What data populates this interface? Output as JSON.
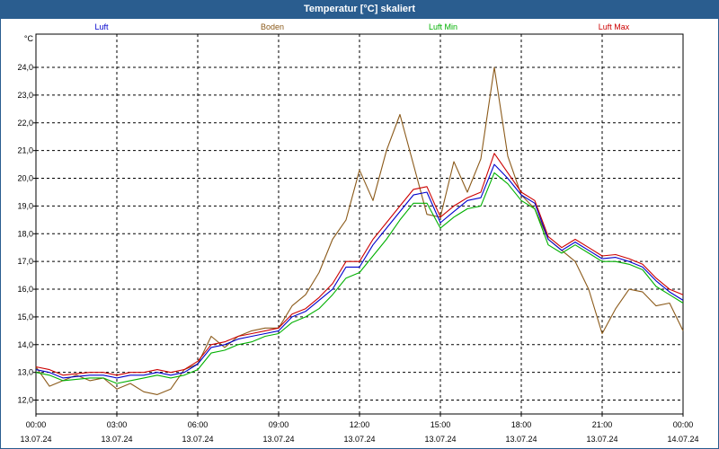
{
  "window": {
    "title": "Temperatur [°C] skaliert"
  },
  "chart_data": {
    "type": "line",
    "title": "Temperatur [°C] skaliert",
    "ylabel": "°C",
    "xlabel": "",
    "ylim": [
      11.5,
      25.2
    ],
    "xlim": [
      0,
      24
    ],
    "grid": true,
    "y_ticks": [
      "12,0",
      "13,0",
      "14,0",
      "15,0",
      "16,0",
      "17,0",
      "18,0",
      "19,0",
      "20,0",
      "21,0",
      "22,0",
      "23,0",
      "24,0"
    ],
    "x_ticks": [
      {
        "time": "00:00",
        "date": "13.07.24"
      },
      {
        "time": "03:00",
        "date": "13.07.24"
      },
      {
        "time": "06:00",
        "date": "13.07.24"
      },
      {
        "time": "09:00",
        "date": "13.07.24"
      },
      {
        "time": "12:00",
        "date": "13.07.24"
      },
      {
        "time": "15:00",
        "date": "13.07.24"
      },
      {
        "time": "18:00",
        "date": "13.07.24"
      },
      {
        "time": "21:00",
        "date": "13.07.24"
      },
      {
        "time": "00:00",
        "date": "14.07.24"
      }
    ],
    "series": [
      {
        "name": "Luft",
        "color": "#0000cc",
        "x": [
          0,
          0.5,
          1,
          1.5,
          2,
          2.5,
          3,
          3.5,
          4,
          4.5,
          5,
          5.5,
          6,
          6.5,
          7,
          7.5,
          8,
          8.5,
          9,
          9.5,
          10,
          10.5,
          11,
          11.5,
          12,
          12.5,
          13,
          13.5,
          14,
          14.5,
          15,
          15.5,
          16,
          16.5,
          17,
          17.5,
          18,
          18.5,
          19,
          19.5,
          20,
          20.5,
          21,
          21.5,
          22,
          22.5,
          23,
          23.5,
          24
        ],
        "values": [
          13.1,
          13.0,
          12.8,
          12.85,
          12.9,
          12.9,
          12.8,
          12.9,
          12.9,
          13.0,
          12.9,
          13.0,
          13.3,
          13.9,
          14.0,
          14.2,
          14.3,
          14.4,
          14.5,
          15.0,
          15.2,
          15.6,
          16.0,
          16.8,
          16.8,
          17.6,
          18.2,
          18.8,
          19.4,
          19.5,
          18.4,
          18.8,
          19.2,
          19.3,
          20.5,
          20.0,
          19.4,
          19.1,
          17.8,
          17.4,
          17.7,
          17.4,
          17.1,
          17.15,
          17.0,
          16.8,
          16.3,
          15.9,
          15.6
        ]
      },
      {
        "name": "Boden",
        "color": "#8b5a1a",
        "x": [
          0,
          0.5,
          1,
          1.5,
          2,
          2.5,
          3,
          3.5,
          4,
          4.5,
          5,
          5.5,
          6,
          6.5,
          7,
          7.5,
          8,
          8.5,
          9,
          9.5,
          10,
          10.5,
          11,
          11.5,
          12,
          12.5,
          13,
          13.5,
          14,
          14.5,
          15,
          15.5,
          16,
          16.5,
          17,
          17.5,
          18,
          18.5,
          19,
          19.5,
          20,
          20.5,
          21,
          21.5,
          22,
          22.5,
          23,
          23.5,
          24
        ],
        "values": [
          13.2,
          12.5,
          12.7,
          12.9,
          12.7,
          12.8,
          12.4,
          12.6,
          12.3,
          12.2,
          12.4,
          13.1,
          13.3,
          14.3,
          13.9,
          14.3,
          14.5,
          14.6,
          14.6,
          15.4,
          15.8,
          16.6,
          17.8,
          18.5,
          20.3,
          19.2,
          21.0,
          22.3,
          20.5,
          18.7,
          18.6,
          20.6,
          19.5,
          20.7,
          24.0,
          20.8,
          19.4,
          18.9,
          17.8,
          17.4,
          17.0,
          16.0,
          14.4,
          15.3,
          16.0,
          15.9,
          15.4,
          15.5,
          14.5
        ]
      },
      {
        "name": "Luft Min",
        "color": "#00b000",
        "x": [
          0,
          0.5,
          1,
          1.5,
          2,
          2.5,
          3,
          3.5,
          4,
          4.5,
          5,
          5.5,
          6,
          6.5,
          7,
          7.5,
          8,
          8.5,
          9,
          9.5,
          10,
          10.5,
          11,
          11.5,
          12,
          12.5,
          13,
          13.5,
          14,
          14.5,
          15,
          15.5,
          16,
          16.5,
          17,
          17.5,
          18,
          18.5,
          19,
          19.5,
          20,
          20.5,
          21,
          21.5,
          22,
          22.5,
          23,
          23.5,
          24
        ],
        "values": [
          13.0,
          12.9,
          12.7,
          12.75,
          12.8,
          12.8,
          12.6,
          12.7,
          12.8,
          12.9,
          12.8,
          12.9,
          13.1,
          13.7,
          13.8,
          14.0,
          14.1,
          14.3,
          14.4,
          14.8,
          15.0,
          15.3,
          15.8,
          16.4,
          16.6,
          17.2,
          17.8,
          18.5,
          19.1,
          19.1,
          18.2,
          18.6,
          18.9,
          19.0,
          20.2,
          19.8,
          19.2,
          18.9,
          17.6,
          17.3,
          17.6,
          17.3,
          17.0,
          17.0,
          16.9,
          16.7,
          16.1,
          15.8,
          15.5
        ]
      },
      {
        "name": "Luft Max",
        "color": "#cc0000",
        "x": [
          0,
          0.5,
          1,
          1.5,
          2,
          2.5,
          3,
          3.5,
          4,
          4.5,
          5,
          5.5,
          6,
          6.5,
          7,
          7.5,
          8,
          8.5,
          9,
          9.5,
          10,
          10.5,
          11,
          11.5,
          12,
          12.5,
          13,
          13.5,
          14,
          14.5,
          15,
          15.5,
          16,
          16.5,
          17,
          17.5,
          18,
          18.5,
          19,
          19.5,
          20,
          20.5,
          21,
          21.5,
          22,
          22.5,
          23,
          23.5,
          24
        ],
        "values": [
          13.2,
          13.1,
          12.9,
          12.95,
          13.0,
          13.0,
          12.9,
          13.0,
          13.0,
          13.1,
          13.0,
          13.1,
          13.4,
          14.0,
          14.1,
          14.3,
          14.4,
          14.5,
          14.6,
          15.1,
          15.3,
          15.7,
          16.2,
          17.0,
          17.0,
          17.8,
          18.4,
          19.0,
          19.6,
          19.7,
          18.6,
          19.0,
          19.3,
          19.5,
          20.9,
          20.2,
          19.5,
          19.2,
          17.9,
          17.5,
          17.8,
          17.5,
          17.2,
          17.25,
          17.1,
          16.9,
          16.4,
          16.0,
          15.8
        ]
      }
    ]
  }
}
